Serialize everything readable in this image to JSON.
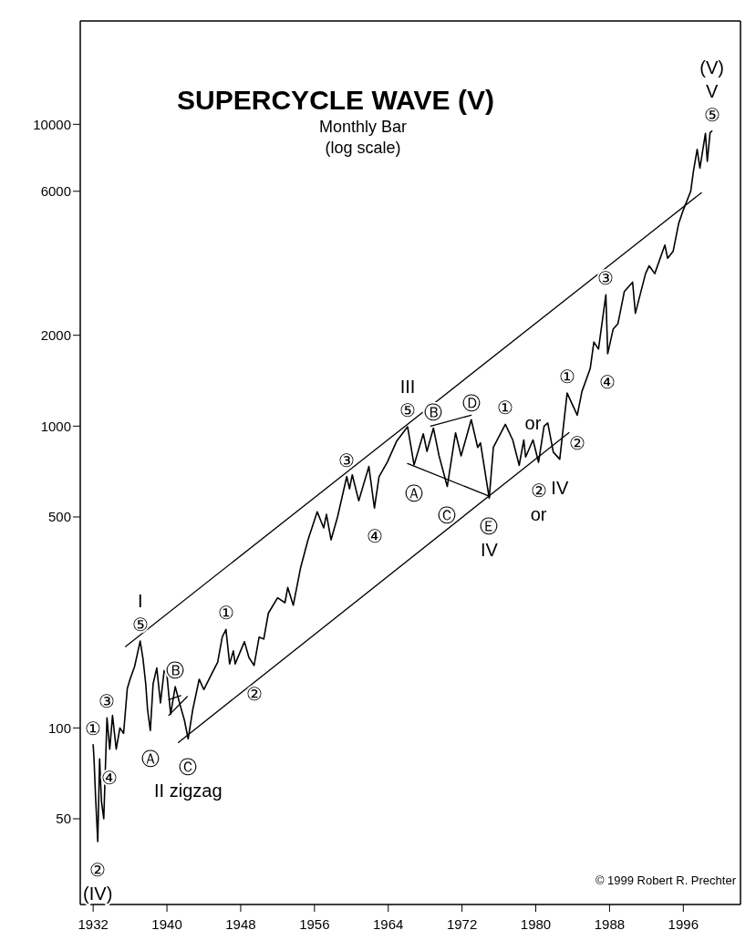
{
  "chart_data": {
    "type": "line",
    "title": "SUPERCYCLE WAVE (V)",
    "subtitle": "Monthly Bar\n(log scale)",
    "log": true,
    "grid": false,
    "marker": "none",
    "line_style": "solid",
    "xlim": [
      1930.6,
      2002.2
    ],
    "xticks": [
      1932,
      1940,
      1948,
      1956,
      1964,
      1972,
      1980,
      1988,
      1996
    ],
    "ylim": [
      26,
      22000
    ],
    "yticks": [
      50,
      100,
      500,
      1000,
      2000,
      6000,
      10000
    ],
    "series": [
      {
        "color": "#000000",
        "x": [
          1932.0,
          1932.1,
          1932.25,
          1932.5,
          1932.7,
          1932.9,
          1933.15,
          1933.5,
          1933.8,
          1934.1,
          1934.5,
          1934.9,
          1935.3,
          1935.7,
          1936.0,
          1936.5,
          1937.1,
          1937.4,
          1937.7,
          1937.9,
          1938.2,
          1938.5,
          1938.9,
          1939.3,
          1939.7,
          1940.0,
          1940.4,
          1940.9,
          1941.4,
          1941.9,
          1942.3,
          1942.8,
          1943.5,
          1944.0,
          1944.9,
          1945.5,
          1946.0,
          1946.4,
          1946.8,
          1947.2,
          1947.4,
          1948.4,
          1948.9,
          1949.45,
          1950.0,
          1950.5,
          1951.0,
          1952.0,
          1952.8,
          1953.1,
          1953.7,
          1954.5,
          1955.3,
          1956.3,
          1957.0,
          1957.3,
          1957.8,
          1958.5,
          1959.5,
          1959.8,
          1960.1,
          1960.8,
          1961.9,
          1962.5,
          1963.0,
          1963.9,
          1964.9,
          1966.1,
          1966.8,
          1967.8,
          1968.2,
          1968.9,
          1969.5,
          1970.4,
          1971.3,
          1971.9,
          1973.0,
          1973.7,
          1974.0,
          1974.95,
          1975.4,
          1976.7,
          1977.5,
          1978.2,
          1978.7,
          1978.9,
          1979.7,
          1980.3,
          1980.9,
          1981.3,
          1981.9,
          1982.6,
          1983.4,
          1984.5,
          1985.0,
          1985.9,
          1986.3,
          1986.8,
          1987.6,
          1987.8,
          1988.4,
          1988.9,
          1989.6,
          1990.5,
          1990.8,
          1991.9,
          1992.3,
          1992.9,
          1994.0,
          1994.3,
          1994.9,
          1995.5,
          1996.0,
          1996.8,
          1997.1,
          1997.5,
          1997.8,
          1998.4,
          1998.6,
          1998.9,
          1999.1
        ],
        "values": [
          88,
          78,
          60,
          42,
          79,
          57,
          50,
          108,
          85,
          110,
          85,
          100,
          96,
          135,
          145,
          160,
          194,
          170,
          140,
          115,
          98,
          140,
          158,
          121,
          155,
          150,
          111,
          137,
          120,
          106,
          92,
          115,
          145,
          134,
          152,
          165,
          200,
          212,
          163,
          180,
          163,
          193,
          171,
          161,
          200,
          197,
          240,
          270,
          260,
          292,
          255,
          340,
          420,
          520,
          460,
          510,
          420,
          500,
          680,
          620,
          690,
          566,
          735,
          535,
          680,
          760,
          890,
          995,
          744,
          943,
          825,
          985,
          800,
          631,
          950,
          797,
          1051,
          850,
          880,
          577,
          850,
          1014,
          900,
          742,
          900,
          790,
          900,
          759,
          1000,
          1024,
          820,
          777,
          1287,
          1087,
          1300,
          1550,
          1900,
          1800,
          2722,
          1738,
          2100,
          2180,
          2791,
          2999,
          2365,
          3200,
          3400,
          3200,
          3978,
          3600,
          3800,
          4700,
          5200,
          6000,
          7000,
          8259,
          7161,
          9338,
          7539,
          9374,
          9500
        ]
      },
      {
        "color": "#000000",
        "x": [
          1935.5,
          1997.95
        ],
        "values": [
          186,
          5930
        ]
      },
      {
        "color": "#000000",
        "x": [
          1941.25,
          1983.6
        ],
        "values": [
          89.5,
          952
        ]
      },
      {
        "color": "#000000",
        "x": [
          1966.1,
          1975.0
        ],
        "values": [
          752,
          585
        ]
      },
      {
        "color": "#000000",
        "x": [
          1968.6,
          1973.0
        ],
        "values": [
          1000,
          1087
        ]
      },
      {
        "color": "#000000",
        "x": [
          1940.2,
          1942.2
        ],
        "values": [
          110,
          127
        ]
      },
      {
        "color": "#000000",
        "x": [
          1940.2,
          1941.5
        ],
        "values": [
          124,
          128
        ]
      }
    ],
    "annotations": [
      {
        "text": "②",
        "x": 1932.5,
        "y": 42
      },
      {
        "text": "(IV)",
        "x": 1932.5,
        "y": 42
      },
      {
        "text": "①",
        "x": 1932.0,
        "y": 88
      },
      {
        "text": "③",
        "x": 1933.5,
        "y": 108
      },
      {
        "text": "④",
        "x": 1933.8,
        "y": 85
      },
      {
        "text": "⑤",
        "x": 1937.1,
        "y": 194
      },
      {
        "text": "I",
        "x": 1937.1,
        "y": 194
      },
      {
        "text": "Ⓐ",
        "x": 1938.2,
        "y": 98
      },
      {
        "text": "Ⓑ",
        "x": 1940.9,
        "y": 137
      },
      {
        "text": "Ⓒ",
        "x": 1942.3,
        "y": 92
      },
      {
        "text": "II zigzag",
        "x": 1942.3,
        "y": 92
      },
      {
        "text": "①",
        "x": 1946.4,
        "y": 212
      },
      {
        "text": "②",
        "x": 1949.45,
        "y": 161
      },
      {
        "text": "③",
        "x": 1959.5,
        "y": 680
      },
      {
        "text": "④",
        "x": 1962.5,
        "y": 535
      },
      {
        "text": "⑤",
        "x": 1966.1,
        "y": 995
      },
      {
        "text": "III",
        "x": 1966.1,
        "y": 995
      },
      {
        "text": "Ⓐ",
        "x": 1966.8,
        "y": 744
      },
      {
        "text": "Ⓑ",
        "x": 1968.9,
        "y": 985
      },
      {
        "text": "Ⓒ",
        "x": 1970.4,
        "y": 631
      },
      {
        "text": "Ⓓ",
        "x": 1973.0,
        "y": 1051
      },
      {
        "text": "Ⓔ",
        "x": 1974.95,
        "y": 577
      },
      {
        "text": "IV",
        "x": 1974.95,
        "y": 577
      },
      {
        "text": "①",
        "x": 1976.7,
        "y": 1014
      },
      {
        "text": "or",
        "x": 1979.7,
        "y": 900
      },
      {
        "text": "②",
        "x": 1980.3,
        "y": 759
      },
      {
        "text": "or",
        "x": 1980.3,
        "y": 759
      },
      {
        "text": "IV",
        "x": 1982.6,
        "y": 777
      },
      {
        "text": "①",
        "x": 1983.4,
        "y": 1287
      },
      {
        "text": "②",
        "x": 1984.5,
        "y": 1087
      },
      {
        "text": "③",
        "x": 1987.6,
        "y": 2722
      },
      {
        "text": "④",
        "x": 1987.8,
        "y": 1738
      },
      {
        "text": "⑤",
        "x": 1999.1,
        "y": 9500
      },
      {
        "text": "V",
        "x": 1999.1,
        "y": 9500
      },
      {
        "text": "(V)",
        "x": 1999.1,
        "y": 9500
      },
      "© 1999 Robert R. Prechter"
    ]
  }
}
